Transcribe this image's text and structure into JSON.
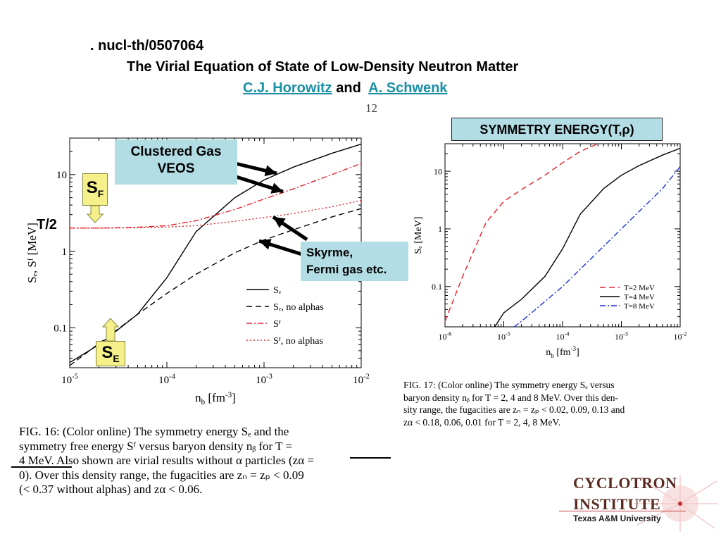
{
  "header": {
    "arxiv": ". nucl-th/0507064",
    "title": "The Virial Equation of State of Low-Density Neutron Matter",
    "author1": "C.J. Horowitz",
    "and": "and",
    "author2": "A. Schwenk"
  },
  "page_number": "12",
  "callouts": {
    "clustered_line1": "Clustered Gas",
    "clustered_line2": "VEOS",
    "skyrme_line1": "Skyrme,",
    "skyrme_line2": "Fermi gas etc.",
    "symmetry_title": "SYMMETRY ENERGY(T,ρ)",
    "sf_label": "S",
    "sf_sub": "F",
    "se_label": "S",
    "se_sub": "E",
    "t_half": "T/2"
  },
  "captions": {
    "fig16_lines": [
      "FIG. 16:  (Color online)  The symmetry energy Sₑ and the",
      "symmetry free energy Sᶠ versus baryon density nᵦ for T =",
      "4 MeV.  Also shown are virial results without α particles (zα =",
      "0).  Over this density range, the fugacities are zₙ = zₚ < 0.09",
      "(< 0.37 without alphas) and zα < 0.06."
    ],
    "fig17_lines": [
      "FIG. 17:  (Color online) The symmetry energy Sₑ versus",
      "baryon density nᵦ for T = 2, 4 and 8 MeV.  Over this den-",
      "sity range, the fugacities are zₙ = zₚ < 0.02, 0.09, 0.13 and",
      "zα < 0.18, 0.06, 0.01 for T = 2, 4, 8 MeV."
    ]
  },
  "logo": {
    "line1": "CYCLOTRON",
    "line2": "INSTITUTE",
    "line3": "Texas A&M University"
  },
  "colors": {
    "callout_bg": "#b3dde4",
    "link": "#1a8fa6",
    "arrow_yellow": "#f5f08a",
    "red_series": "#e8202a",
    "blue_series": "#1f33d6",
    "logo_text": "#5a2a22"
  },
  "chart_data": [
    {
      "type": "line",
      "figure": "FIG. 16",
      "xlabel": "n_b [fm^-3]",
      "ylabel": "S_E, S_F [MeV]",
      "xscale": "log",
      "yscale": "log",
      "xlim": [
        1e-05,
        0.01
      ],
      "ylim": [
        0.03,
        30
      ],
      "x_ticks": [
        "10^-5",
        "10^-4",
        "10^-3",
        "10^-2"
      ],
      "y_ticks": [
        "0.1",
        "1",
        "10"
      ],
      "legend_position": "bottom-right",
      "series": [
        {
          "name": "S_E",
          "style": "solid",
          "color": "#000000",
          "x": [
            1e-05,
            2e-05,
            5e-05,
            0.0001,
            0.0002,
            0.0005,
            0.001,
            0.002,
            0.005,
            0.01
          ],
          "y": [
            0.035,
            0.06,
            0.15,
            0.45,
            1.8,
            5.0,
            8.5,
            12.5,
            19.0,
            25.0
          ]
        },
        {
          "name": "S_E, no alphas",
          "style": "dashed",
          "color": "#000000",
          "x": [
            1e-05,
            2e-05,
            5e-05,
            0.0001,
            0.0002,
            0.0005,
            0.001,
            0.002,
            0.005,
            0.01
          ],
          "y": [
            0.032,
            0.062,
            0.15,
            0.28,
            0.5,
            0.95,
            1.4,
            1.9,
            2.8,
            3.6
          ]
        },
        {
          "name": "S_F",
          "style": "dash-dot",
          "color": "#e8202a",
          "x": [
            1e-05,
            2e-05,
            5e-05,
            0.0001,
            0.0002,
            0.0005,
            0.001,
            0.002,
            0.005,
            0.01
          ],
          "y": [
            2.0,
            2.0,
            2.05,
            2.15,
            2.5,
            3.5,
            4.8,
            6.5,
            10.0,
            14.0
          ]
        },
        {
          "name": "S_F, no alphas",
          "style": "dotted",
          "color": "#e8202a",
          "x": [
            1e-05,
            2e-05,
            5e-05,
            0.0001,
            0.0002,
            0.0005,
            0.001,
            0.002,
            0.005,
            0.01
          ],
          "y": [
            2.0,
            2.0,
            2.02,
            2.06,
            2.15,
            2.45,
            2.75,
            3.1,
            3.8,
            4.6
          ]
        }
      ]
    },
    {
      "type": "line",
      "figure": "FIG. 17",
      "xlabel": "n_b [fm^-3]",
      "ylabel": "S_E [MeV]",
      "xscale": "log",
      "yscale": "log",
      "xlim": [
        1e-06,
        0.01
      ],
      "ylim": [
        0.02,
        30
      ],
      "x_ticks": [
        "10^-6",
        "10^-5",
        "10^-4",
        "10^-3",
        "10^-2"
      ],
      "y_ticks": [
        "0.1",
        "1",
        "10"
      ],
      "legend_position": "bottom-right",
      "series": [
        {
          "name": "T=2 MeV",
          "style": "dashed",
          "color": "#e8202a",
          "x": [
            1e-06,
            2e-06,
            5e-06,
            1e-05,
            2e-05,
            5e-05,
            0.0001,
            0.0002,
            0.0004
          ],
          "y": [
            0.025,
            0.15,
            1.3,
            3.0,
            4.8,
            8.5,
            14.0,
            22.0,
            30.0
          ]
        },
        {
          "name": "T=4 MeV",
          "style": "solid",
          "color": "#000000",
          "x": [
            7e-06,
            1e-05,
            2e-05,
            5e-05,
            0.0001,
            0.0002,
            0.0005,
            0.001,
            0.002,
            0.005,
            0.01
          ],
          "y": [
            0.02,
            0.035,
            0.06,
            0.15,
            0.45,
            1.8,
            5.0,
            8.5,
            12.5,
            19.0,
            25.0
          ]
        },
        {
          "name": "T=8 MeV",
          "style": "dash-dot",
          "color": "#1f33d6",
          "x": [
            1.5e-05,
            2e-05,
            5e-05,
            0.0001,
            0.0002,
            0.0005,
            0.001,
            0.002,
            0.005,
            0.01
          ],
          "y": [
            0.02,
            0.025,
            0.055,
            0.1,
            0.2,
            0.5,
            1.0,
            2.0,
            5.0,
            12.0
          ]
        }
      ]
    }
  ]
}
